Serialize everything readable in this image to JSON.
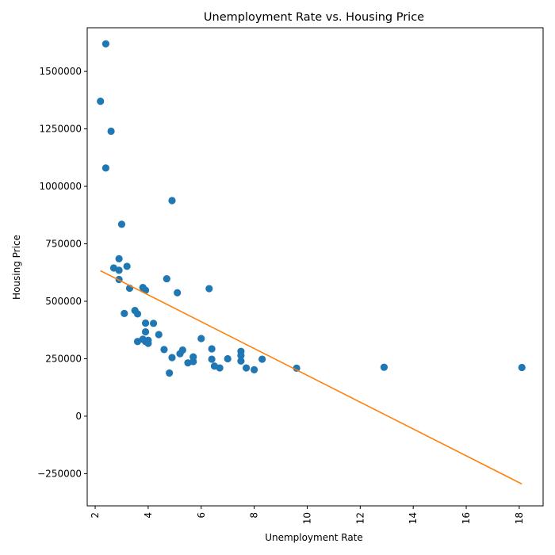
{
  "chart_data": {
    "type": "scatter",
    "title": "Unemployment Rate vs. Housing Price",
    "xlabel": "Unemployment Rate",
    "ylabel": "Housing Price",
    "xlim": [
      1.7,
      18.9
    ],
    "ylim": [
      -390000,
      1690000
    ],
    "x_ticks": [
      2,
      4,
      6,
      8,
      10,
      12,
      14,
      16,
      18
    ],
    "y_ticks": [
      -250000,
      0,
      250000,
      500000,
      750000,
      1000000,
      1250000,
      1500000
    ],
    "grid": false,
    "colors": {
      "points": "#1f77b4",
      "trend": "#ff7f0e"
    },
    "series": [
      {
        "kind": "scatter",
        "points": [
          [
            2.2,
            1370000
          ],
          [
            2.4,
            1620000
          ],
          [
            2.6,
            1240000
          ],
          [
            2.4,
            1080000
          ],
          [
            3.0,
            835000
          ],
          [
            2.9,
            685000
          ],
          [
            3.2,
            652000
          ],
          [
            2.7,
            645000
          ],
          [
            2.9,
            635000
          ],
          [
            2.9,
            595000
          ],
          [
            3.3,
            557000
          ],
          [
            3.8,
            560000
          ],
          [
            3.9,
            548000
          ],
          [
            3.5,
            460000
          ],
          [
            3.6,
            445000
          ],
          [
            3.1,
            447000
          ],
          [
            3.9,
            405000
          ],
          [
            4.2,
            404000
          ],
          [
            3.9,
            367000
          ],
          [
            4.4,
            355000
          ],
          [
            3.6,
            325000
          ],
          [
            3.8,
            335000
          ],
          [
            3.9,
            325000
          ],
          [
            4.0,
            330000
          ],
          [
            4.0,
            317000
          ],
          [
            4.6,
            290000
          ],
          [
            4.9,
            255000
          ],
          [
            4.8,
            188000
          ],
          [
            4.7,
            598000
          ],
          [
            4.9,
            938000
          ],
          [
            5.1,
            537000
          ],
          [
            5.2,
            272000
          ],
          [
            5.3,
            288000
          ],
          [
            5.5,
            232000
          ],
          [
            5.7,
            258000
          ],
          [
            5.7,
            238000
          ],
          [
            6.0,
            338000
          ],
          [
            6.3,
            555000
          ],
          [
            6.4,
            293000
          ],
          [
            6.4,
            248000
          ],
          [
            6.5,
            218000
          ],
          [
            6.7,
            210000
          ],
          [
            7.0,
            250000
          ],
          [
            7.5,
            282000
          ],
          [
            7.5,
            264000
          ],
          [
            7.5,
            240000
          ],
          [
            7.7,
            210000
          ],
          [
            8.0,
            202000
          ],
          [
            8.3,
            248000
          ],
          [
            9.6,
            209000
          ],
          [
            12.9,
            213000
          ],
          [
            18.1,
            212000
          ]
        ]
      },
      {
        "kind": "trend-line",
        "points": [
          [
            2.2,
            633000
          ],
          [
            18.1,
            -295000
          ]
        ]
      }
    ]
  }
}
